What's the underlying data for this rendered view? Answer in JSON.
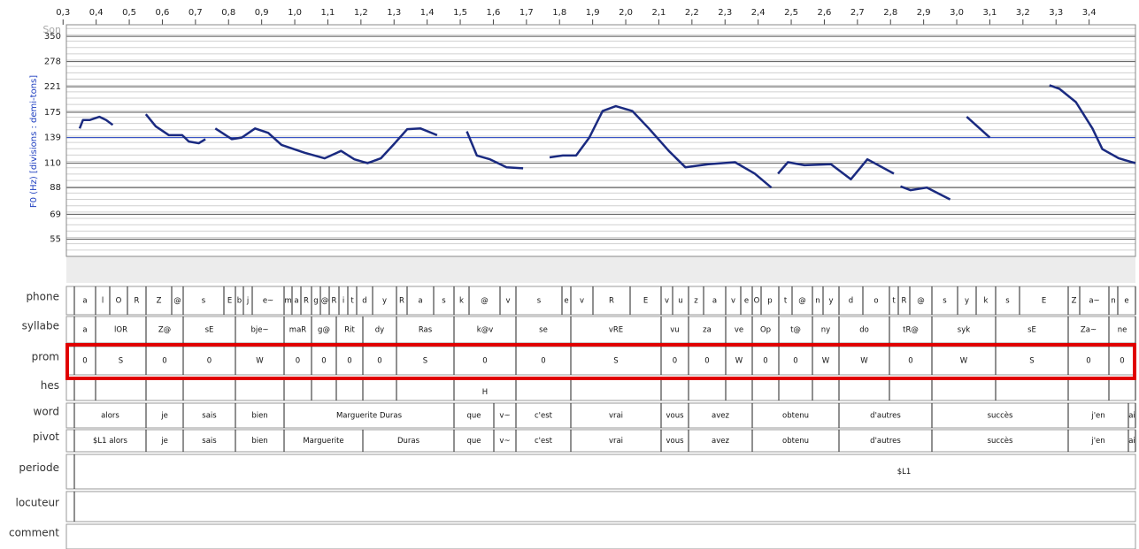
{
  "chart_data": {
    "type": "line",
    "corner_label": "Son",
    "y_label": "F0 (Hz) [divisions : demi-tons]",
    "x": [
      0.35,
      0.36,
      0.38,
      0.41,
      0.43,
      0.45,
      null,
      0.55,
      0.58,
      0.62,
      0.66,
      0.68,
      0.71,
      0.73,
      null,
      0.76,
      0.81,
      0.84,
      0.88,
      0.92,
      0.96,
      1.03,
      1.09,
      1.14,
      1.18,
      1.22,
      1.26,
      1.3,
      1.34,
      1.38,
      1.43,
      null,
      1.52,
      1.55,
      1.59,
      1.64,
      1.69,
      null,
      1.77,
      1.81,
      1.85,
      1.89,
      1.93,
      1.97,
      2.02,
      2.07,
      2.13,
      2.18,
      2.25,
      2.33,
      2.39,
      2.44,
      null,
      2.46,
      2.49,
      2.54,
      2.62,
      2.68,
      2.73,
      2.81,
      null,
      2.83,
      2.86,
      2.91,
      2.98,
      null,
      3.03,
      3.1,
      null,
      3.28,
      3.31,
      3.36,
      3.41,
      3.44,
      3.49,
      3.54
    ],
    "series": [
      {
        "color": "#1a2a80",
        "values": [
          151,
          163,
          163,
          168,
          163,
          156,
          null,
          172,
          154,
          142,
          142,
          134,
          132,
          137,
          null,
          151,
          137,
          139,
          151,
          145,
          130,
          121,
          115,
          123,
          114,
          110,
          115,
          131,
          150,
          151,
          142,
          null,
          147,
          118,
          114,
          106,
          105,
          null,
          116,
          118,
          118,
          139,
          177,
          185,
          177,
          151,
          123,
          106,
          109,
          111,
          100,
          88,
          null,
          100,
          111,
          108,
          109,
          95,
          114,
          100,
          null,
          89,
          86,
          88,
          79,
          null,
          168,
          139,
          null,
          224,
          217,
          192,
          151,
          125,
          115,
          110
        ]
      }
    ],
    "xlim": [
      0.31,
      3.54
    ],
    "ylim": [
      47,
      389
    ],
    "log_scale": true,
    "grid": true,
    "reference_line": 139,
    "reference_color": "#3050d0",
    "xticks": [
      {
        "value": 0.3,
        "label": "0,3"
      },
      {
        "value": 0.4,
        "label": "0,4"
      },
      {
        "value": 0.5,
        "label": "0,5"
      },
      {
        "value": 0.6,
        "label": "0,6"
      },
      {
        "value": 0.7,
        "label": "0,7"
      },
      {
        "value": 0.8,
        "label": "0,8"
      },
      {
        "value": 0.9,
        "label": "0,9"
      },
      {
        "value": 1.0,
        "label": "1,0"
      },
      {
        "value": 1.1,
        "label": "1,1"
      },
      {
        "value": 1.2,
        "label": "1,2"
      },
      {
        "value": 1.3,
        "label": "1,3"
      },
      {
        "value": 1.4,
        "label": "1,4"
      },
      {
        "value": 1.5,
        "label": "1,5"
      },
      {
        "value": 1.6,
        "label": "1,6"
      },
      {
        "value": 1.7,
        "label": "1,7"
      },
      {
        "value": 1.8,
        "label": "1,8"
      },
      {
        "value": 1.9,
        "label": "1,9"
      },
      {
        "value": 2.0,
        "label": "2,0"
      },
      {
        "value": 2.1,
        "label": "2,1"
      },
      {
        "value": 2.2,
        "label": "2,2"
      },
      {
        "value": 2.3,
        "label": "2,3"
      },
      {
        "value": 2.4,
        "label": "2,4"
      },
      {
        "value": 2.5,
        "label": "2,5"
      },
      {
        "value": 2.6,
        "label": "2,6"
      },
      {
        "value": 2.7,
        "label": "2,7"
      },
      {
        "value": 2.8,
        "label": "2,8"
      },
      {
        "value": 2.9,
        "label": "2,9"
      },
      {
        "value": 3.0,
        "label": "3,0"
      },
      {
        "value": 3.1,
        "label": "3,1"
      },
      {
        "value": 3.2,
        "label": "3,2"
      },
      {
        "value": 3.3,
        "label": "3,3"
      },
      {
        "value": 3.4,
        "label": "3,4"
      }
    ],
    "yticks": [
      350,
      278,
      221,
      175,
      139,
      110,
      88,
      69,
      55
    ]
  },
  "tiers": [
    {
      "label": "phone",
      "intervals": [
        "a",
        "l",
        "O",
        "R",
        "Z",
        "@",
        "s",
        "E",
        "b",
        "j",
        "e~",
        "m",
        "a",
        "R",
        "g",
        "@",
        "R",
        "i",
        "t",
        "d",
        "y",
        "R",
        "a",
        "s",
        "k",
        "@",
        "v",
        "s",
        "e",
        "v",
        "R",
        "E",
        "v",
        "u",
        "z",
        "a",
        "v",
        "e",
        "O",
        "p",
        "t",
        "@",
        "n",
        "y",
        "d",
        "o",
        "t",
        "R",
        "@",
        "s",
        "y",
        "k",
        "s",
        "E",
        "Z",
        "a~",
        "n",
        "e"
      ]
    },
    {
      "label": "syllabe",
      "intervals": [
        "a",
        "lOR",
        "Z@",
        "sE",
        "bje~",
        "maR",
        "g@",
        "Rit",
        "dy",
        "Ras",
        "k@v",
        "se",
        "vRE",
        "vu",
        "za",
        "ve",
        "Op",
        "t@",
        "ny",
        "do",
        "tR@",
        "syk",
        "sE",
        "Za~",
        "ne"
      ]
    },
    {
      "label": "prom",
      "intervals": [
        "0",
        "S",
        "0",
        "0",
        "W",
        "0",
        "0",
        "0",
        "0",
        "S",
        "0",
        "0",
        "S",
        "0",
        "0",
        "W",
        "0",
        "0",
        "W",
        "W",
        "0",
        "W",
        "S",
        "0",
        "0"
      ]
    },
    {
      "label": "hes",
      "intervals": [
        "H"
      ]
    },
    {
      "label": "word",
      "intervals": [
        "alors",
        "je",
        "sais",
        "bien",
        "Marguerite Duras",
        "que",
        "v~",
        "c'est",
        "vrai",
        "vous",
        "avez",
        "obtenu",
        "d'autres",
        "succès",
        "j'en",
        "ai"
      ]
    },
    {
      "label": "pivot",
      "intervals": [
        "$L1 alors",
        "je",
        "sais",
        "bien",
        "Marguerite",
        "Duras",
        "que",
        "v~",
        "c'est",
        "vrai",
        "vous",
        "avez",
        "obtenu",
        "d'autres",
        "succès",
        "j'en",
        "ai"
      ]
    },
    {
      "label": "periode",
      "intervals": [
        "$L1"
      ]
    },
    {
      "label": "locuteur"
    },
    {
      "label": "comment"
    }
  ]
}
